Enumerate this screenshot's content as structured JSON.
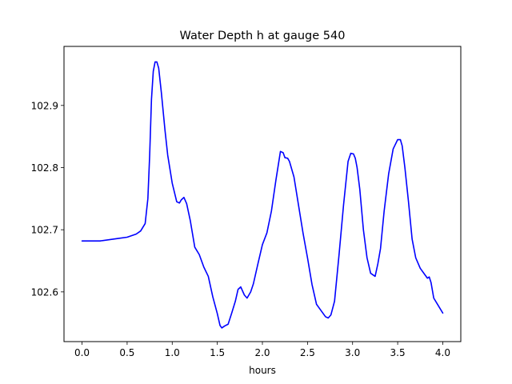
{
  "chart_data": {
    "type": "line",
    "title": "Water Depth h at gauge 540",
    "xlabel": "hours",
    "ylabel": "",
    "xlim": [
      -0.2,
      4.2
    ],
    "ylim": [
      102.52,
      102.995
    ],
    "xticks": [
      0.0,
      0.5,
      1.0,
      1.5,
      2.0,
      2.5,
      3.0,
      3.5,
      4.0
    ],
    "xtick_labels": [
      "0.0",
      "0.5",
      "1.0",
      "1.5",
      "2.0",
      "2.5",
      "3.0",
      "3.5",
      "4.0"
    ],
    "yticks": [
      102.6,
      102.7,
      102.8,
      102.9
    ],
    "ytick_labels": [
      "102.6",
      "102.7",
      "102.8",
      "102.9"
    ],
    "grid": false,
    "series": [
      {
        "color": "#0000ff",
        "x": [
          0.0,
          0.2,
          0.4,
          0.5,
          0.6,
          0.65,
          0.7,
          0.73,
          0.75,
          0.77,
          0.79,
          0.81,
          0.83,
          0.85,
          0.88,
          0.92,
          0.95,
          1.0,
          1.05,
          1.08,
          1.1,
          1.13,
          1.16,
          1.2,
          1.25,
          1.3,
          1.35,
          1.4,
          1.45,
          1.5,
          1.53,
          1.55,
          1.58,
          1.62,
          1.66,
          1.7,
          1.73,
          1.76,
          1.8,
          1.83,
          1.87,
          1.9,
          1.95,
          2.0,
          2.05,
          2.1,
          2.15,
          2.2,
          2.23,
          2.25,
          2.28,
          2.3,
          2.35,
          2.4,
          2.45,
          2.5,
          2.55,
          2.6,
          2.65,
          2.7,
          2.73,
          2.76,
          2.8,
          2.85,
          2.9,
          2.95,
          2.98,
          3.01,
          3.03,
          3.05,
          3.08,
          3.12,
          3.16,
          3.2,
          3.25,
          3.28,
          3.31,
          3.35,
          3.4,
          3.45,
          3.5,
          3.53,
          3.55,
          3.58,
          3.62,
          3.66,
          3.7,
          3.75,
          3.8,
          3.83,
          3.85,
          3.87,
          3.9,
          3.95,
          4.0
        ],
        "y": [
          102.682,
          102.682,
          102.686,
          102.688,
          102.693,
          102.698,
          102.71,
          102.75,
          102.82,
          102.91,
          102.955,
          102.97,
          102.97,
          102.96,
          102.92,
          102.86,
          102.82,
          102.775,
          102.745,
          102.743,
          102.748,
          102.752,
          102.742,
          102.715,
          102.672,
          102.66,
          102.64,
          102.625,
          102.592,
          102.565,
          102.546,
          102.542,
          102.545,
          102.548,
          102.566,
          102.585,
          102.604,
          102.608,
          102.595,
          102.59,
          102.6,
          102.613,
          102.645,
          102.676,
          102.695,
          102.73,
          102.78,
          102.826,
          102.824,
          102.816,
          102.815,
          102.81,
          102.785,
          102.74,
          102.695,
          102.655,
          102.612,
          102.58,
          102.57,
          102.56,
          102.558,
          102.563,
          102.585,
          102.66,
          102.74,
          102.81,
          102.823,
          102.822,
          102.815,
          102.8,
          102.765,
          102.7,
          102.655,
          102.63,
          102.625,
          102.645,
          102.67,
          102.73,
          102.79,
          102.83,
          102.845,
          102.845,
          102.835,
          102.8,
          102.745,
          102.685,
          102.655,
          102.638,
          102.628,
          102.622,
          102.624,
          102.615,
          102.59,
          102.578,
          102.566
        ]
      }
    ]
  }
}
